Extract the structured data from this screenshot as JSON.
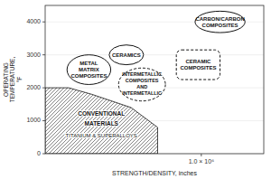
{
  "chart_data": {
    "type": "region",
    "xlabel": "STRENGTH/DENSITY, inches",
    "ylabel": "OPERATING\nTEMPERATURE,\n°F",
    "xlim": [
      0,
      1.4
    ],
    "ylim": [
      0,
      4500
    ],
    "xticks": [
      {
        "value": 1.0,
        "label": "1.0 × 10⁶"
      }
    ],
    "yticks": [
      0,
      1000,
      2000,
      3000,
      4000
    ],
    "hatched_region": {
      "x": [
        0,
        0,
        0.05,
        0.15,
        0.3,
        0.55,
        0.72,
        0.72,
        0
      ],
      "y": [
        0,
        2000,
        2000,
        2000,
        1800,
        1400,
        800,
        0,
        0
      ],
      "labels": [
        "CONVENTIONAL",
        "MATERIALS",
        "TITANIUM & SUPERALLOYS"
      ]
    },
    "regions": [
      {
        "label": "METAL\nMATRIX\nCOMPOSITES",
        "cx": 0.28,
        "cy": 2550,
        "width": 0.28,
        "height": 900,
        "line_style": "solid",
        "marker": "ellipse"
      },
      {
        "label": "CERAMICS",
        "cx": 0.52,
        "cy": 3000,
        "width": 0.22,
        "height": 600,
        "line_style": "solid",
        "marker": "ellipse"
      },
      {
        "label": "INTERMETALLIC\nCOMPOSITES\nAND\nINTERMETALLIC",
        "cx": 0.62,
        "cy": 2100,
        "width": 0.3,
        "height": 1000,
        "line_style": "dashed",
        "marker": "ellipse"
      },
      {
        "label": "CERAMIC\nCOMPOSITES",
        "cx": 0.98,
        "cy": 2700,
        "width": 0.28,
        "height": 900,
        "line_style": "dashed",
        "marker": "box"
      },
      {
        "label": "CARBON/CARBON\nCOMPOSITES",
        "cx": 1.12,
        "cy": 4000,
        "width": 0.32,
        "height": 650,
        "line_style": "solid",
        "marker": "ellipse"
      }
    ]
  }
}
